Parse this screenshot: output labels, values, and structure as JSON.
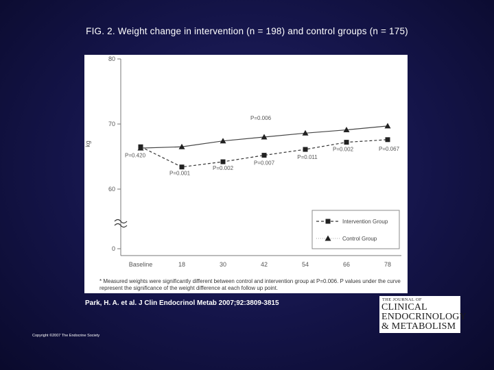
{
  "slide": {
    "title": "FIG. 2. Weight change in intervention (n = 198) and control groups (n = 175)",
    "citation": "Park, H. A. et al. J Clin Endocrinol Metab 2007;92:3809-3815",
    "copyright": "Copyright ©2007 The Endocrine Society",
    "logo": {
      "line1": "THE JOURNAL OF",
      "line2": "CLINICAL",
      "line3": "ENDOCRINOLOGY",
      "line4": "& METABOLISM"
    }
  },
  "chart_data": {
    "type": "line",
    "title": "",
    "ylabel": "kg",
    "xlabel": "",
    "categories": [
      "Baseline",
      "18",
      "30",
      "42",
      "54",
      "66",
      "78"
    ],
    "y_ticks": [
      "80",
      "70",
      "60",
      "0"
    ],
    "ylim": [
      58,
      80
    ],
    "axis_break": true,
    "series": [
      {
        "name": "Intervention Group",
        "marker": "square",
        "dashed": true,
        "values": [
          66.5,
          63.4,
          64.2,
          65.2,
          66.1,
          67.2,
          67.6
        ]
      },
      {
        "name": "Control Group",
        "marker": "triangle",
        "dashed": false,
        "values": [
          66.3,
          66.5,
          67.4,
          68.0,
          68.6,
          69.1,
          69.7
        ]
      }
    ],
    "p_values": [
      {
        "category": "Baseline",
        "label": "P=0.420",
        "position": "below"
      },
      {
        "category": "18",
        "label": "P=0.001",
        "position": "below"
      },
      {
        "category": "30",
        "label": "P=0.002",
        "position": "below"
      },
      {
        "category": "42",
        "label": "P=0.007",
        "position": "below"
      },
      {
        "category": "54",
        "label": "P=0.011",
        "position": "below"
      },
      {
        "category": "66",
        "label": "P=0.002",
        "position": "below"
      },
      {
        "category": "78",
        "label": "P=0.067",
        "position": "below"
      }
    ],
    "overall_annotation": "P=0.006",
    "legend_position": "bottom-right",
    "footnote": "* Measured weights were significantly different between control and intervention group at P=0.006. P values under the curve represent the significance of the weight difference at each follow up point."
  }
}
